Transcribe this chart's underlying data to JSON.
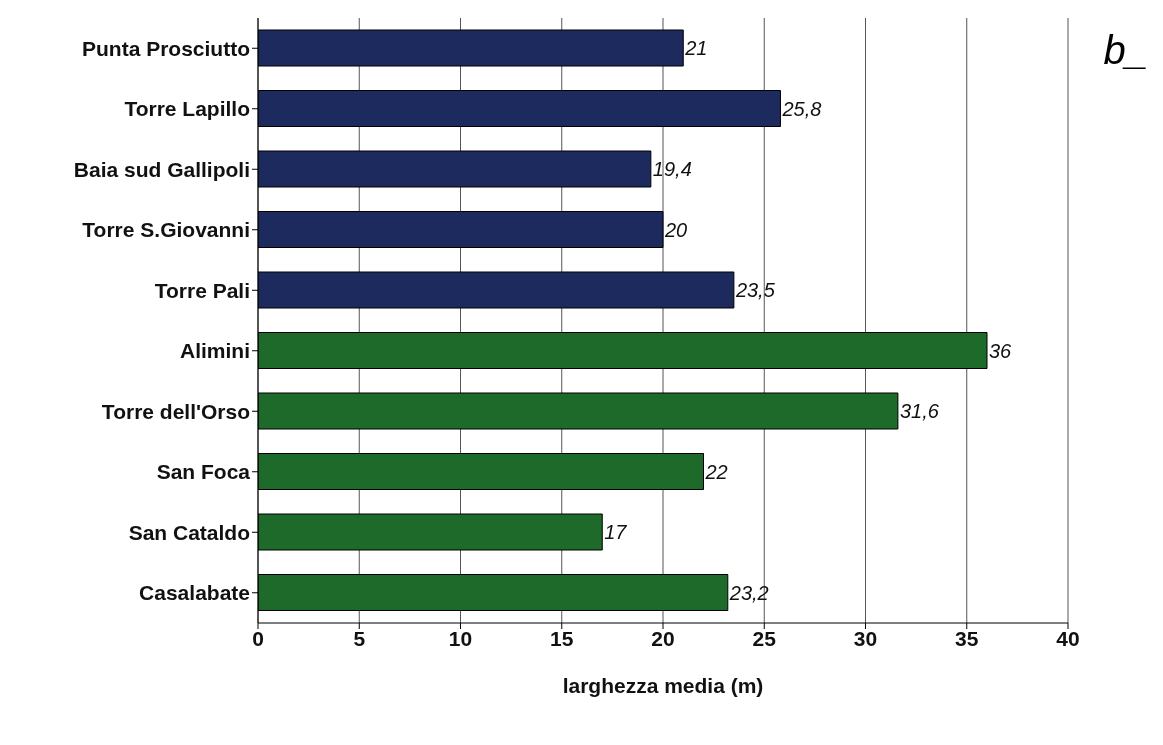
{
  "chart_data": {
    "type": "bar",
    "orientation": "horizontal",
    "xlabel": "larghezza media (m)",
    "categories": [
      "Punta Prosciutto",
      "Torre Lapillo",
      "Baia sud Gallipoli",
      "Torre S.Giovanni",
      "Torre Pali",
      "Alimini",
      "Torre dell'Orso",
      "San Foca",
      "San Cataldo",
      "Casalabate"
    ],
    "values": [
      21,
      25.8,
      19.4,
      20,
      23.5,
      36,
      31.6,
      22,
      17,
      23.2
    ],
    "value_labels": [
      "21",
      "25,8",
      "19,4",
      "20",
      "23,5",
      "36",
      "31,6",
      "22",
      "17",
      "23,2"
    ],
    "colors": [
      "#1c2a5e",
      "#1c2a5e",
      "#1c2a5e",
      "#1c2a5e",
      "#1c2a5e",
      "#1e6a2a",
      "#1e6a2a",
      "#1e6a2a",
      "#1e6a2a",
      "#1e6a2a"
    ],
    "xlim": [
      0,
      40
    ],
    "xticks": [
      0,
      5,
      10,
      15,
      20,
      25,
      30,
      35,
      40
    ],
    "grid": "x",
    "annotations": [
      "b_"
    ]
  }
}
